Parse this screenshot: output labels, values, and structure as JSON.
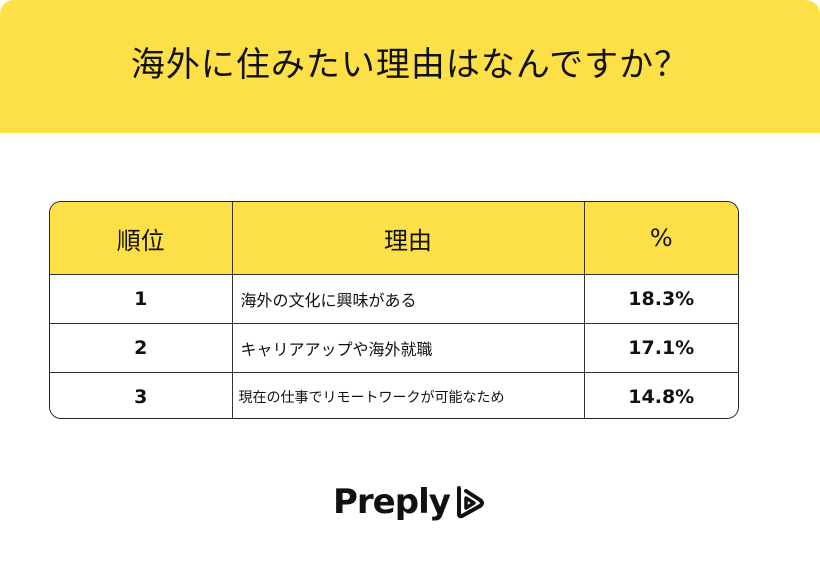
{
  "title": "海外に住みたい理由はなんですか？",
  "chart_data": {
    "type": "table",
    "columns": [
      "順位",
      "理由",
      "%"
    ],
    "rows": [
      {
        "rank": "1",
        "reason": "海外の文化に興味がある",
        "percent": "18.3%"
      },
      {
        "rank": "2",
        "reason": "キャリアアップや海外就職",
        "percent": "17.1%"
      },
      {
        "rank": "3",
        "reason": "現在の仕事でリモートワークが可能なため",
        "percent": "14.8%"
      }
    ]
  },
  "brand": {
    "name": "Preply",
    "logo_icon": "preply-logo-icon",
    "accent_color": "#fde047"
  }
}
